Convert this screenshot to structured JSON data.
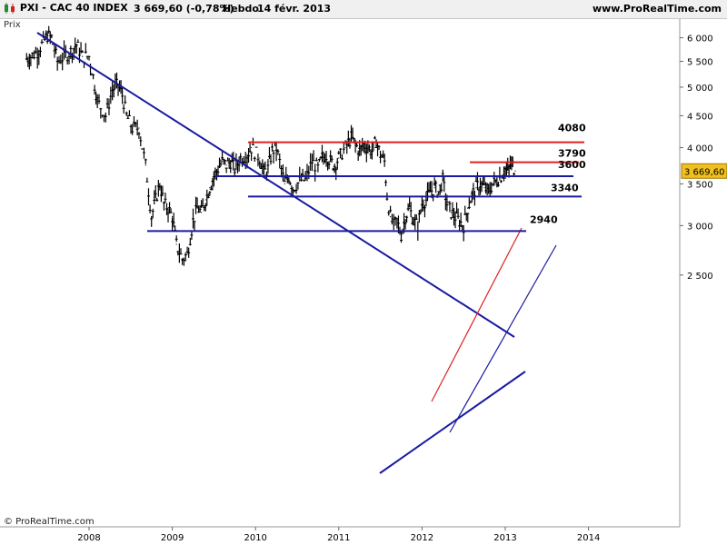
{
  "header": {
    "symbol": "PXI - CAC 40 INDEX",
    "price_change": "3 669,60 (-0,78%)",
    "period": "Hebdo",
    "date": "14 févr. 2013",
    "website": "www.ProRealTime.com"
  },
  "y_axis_label": "Prix",
  "copyright": "© ProRealTime.com",
  "colors": {
    "price": "#000000",
    "trend_line": "#1a1aa0",
    "resistance": "#e02020",
    "last_price_tag": "#f0c020"
  },
  "chart_data": {
    "type": "line",
    "title": "PXI - CAC 40 INDEX",
    "xlabel": "",
    "ylabel": "Prix",
    "y_scale": "log",
    "ylim": [
      2400,
      6400
    ],
    "xlim": [
      2007.25,
      2014.15
    ],
    "x_ticks": [
      "2008",
      "2009",
      "2010",
      "2011",
      "2012",
      "2013",
      "2014"
    ],
    "y_ticks": [
      "2 500",
      "3 000",
      "3 500",
      "4 000",
      "4 500",
      "5 000",
      "5 500",
      "6 000"
    ],
    "last_price": 3669.6,
    "last_price_label": "3 669,60",
    "series": [
      {
        "x": [
          2007.25,
          2007.3,
          2007.38,
          2007.45,
          2007.5,
          2007.55,
          2007.62,
          2007.7,
          2007.78,
          2007.85,
          2007.92,
          2008.0,
          2008.05,
          2008.1,
          2008.2,
          2008.28,
          2008.35,
          2008.4,
          2008.45,
          2008.52,
          2008.6,
          2008.68,
          2008.75,
          2008.8,
          2008.85,
          2008.9,
          2008.95,
          2009.0,
          2009.05,
          2009.12,
          2009.18,
          2009.25,
          2009.3,
          2009.35,
          2009.4,
          2009.45,
          2009.5,
          2009.55,
          2009.6,
          2009.65,
          2009.7,
          2009.75,
          2009.82,
          2009.9,
          2009.95,
          2010.05,
          2010.1,
          2010.15,
          2010.2,
          2010.25,
          2010.35,
          2010.4,
          2010.45,
          2010.55,
          2010.6,
          2010.68,
          2010.75,
          2010.8,
          2010.85,
          2010.9,
          2010.95,
          2011.0,
          2011.08,
          2011.15,
          2011.2,
          2011.25,
          2011.3,
          2011.35,
          2011.4,
          2011.45,
          2011.5,
          2011.55,
          2011.58,
          2011.62,
          2011.66,
          2011.7,
          2011.75,
          2011.8,
          2011.85,
          2011.9,
          2011.95,
          2012.0,
          2012.05,
          2012.1,
          2012.15,
          2012.2,
          2012.25,
          2012.3,
          2012.35,
          2012.4,
          2012.45,
          2012.5,
          2012.55,
          2012.6,
          2012.65,
          2012.7,
          2012.75,
          2012.8,
          2012.85,
          2012.9,
          2012.95,
          2013.0,
          2013.03,
          2013.06,
          2013.09,
          2013.12
        ],
        "values": [
          5550,
          5600,
          5700,
          5900,
          6050,
          6000,
          5500,
          5600,
          5700,
          5850,
          5600,
          5600,
          5200,
          4750,
          4500,
          4950,
          5050,
          4850,
          4500,
          4300,
          4300,
          3750,
          3100,
          3300,
          3500,
          3250,
          3200,
          3100,
          2800,
          2650,
          2700,
          3050,
          3200,
          3150,
          3300,
          3450,
          3600,
          3700,
          3800,
          3750,
          3800,
          3700,
          3850,
          3900,
          4000,
          3850,
          3650,
          3700,
          3950,
          4000,
          3500,
          3600,
          3450,
          3550,
          3550,
          3800,
          3700,
          3850,
          3900,
          3800,
          3750,
          3850,
          4000,
          4150,
          4050,
          3950,
          4050,
          4000,
          3950,
          4100,
          3900,
          3800,
          3350,
          3100,
          3000,
          3050,
          2900,
          3100,
          3200,
          3050,
          3000,
          3250,
          3300,
          3400,
          3450,
          3400,
          3550,
          3250,
          3150,
          3100,
          3050,
          3000,
          3200,
          3350,
          3450,
          3500,
          3450,
          3400,
          3500,
          3550,
          3600,
          3700,
          3650,
          3750,
          3750,
          3670
        ]
      }
    ],
    "annotations": [
      {
        "label": "4080",
        "y": 4080,
        "kind": "resistance"
      },
      {
        "label": "3790",
        "y": 3790,
        "kind": "resistance"
      },
      {
        "label": "3600",
        "y": 3600,
        "kind": "support"
      },
      {
        "label": "3340",
        "y": 3340,
        "kind": "support"
      },
      {
        "label": "2940",
        "y": 2940,
        "kind": "support"
      }
    ]
  }
}
